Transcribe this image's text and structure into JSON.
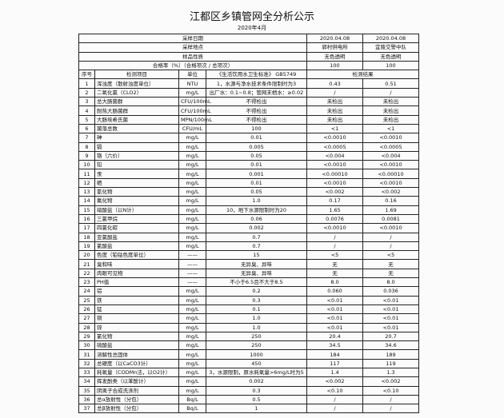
{
  "header": {
    "title": "江都区乡镇管网全分析公示",
    "subtitle": "2020年4月"
  },
  "info_rows": [
    [
      "采样日期",
      "2020.04.08",
      "2020.04.08"
    ],
    [
      "采样地点",
      "郭村供电所",
      "宜陵交警中队"
    ],
    [
      "样品性质",
      "无色透明",
      "无色透明"
    ],
    [
      "合格率（%）（合格项次 / 总项次）",
      "100",
      "100"
    ]
  ],
  "table": {
    "columns": [
      "序号",
      "检测项目",
      "单位",
      "《生活饮用水卫生标准》 GB5749",
      "检测结果"
    ],
    "rows": [
      [
        "1",
        "浑浊度（散射浊度单位）",
        "NTU",
        "1，水源与净水技术条件限制时为3",
        "0.43",
        "0.51"
      ],
      [
        "2",
        "二氧化氯（CLO2）",
        "mg/L",
        "出厂水：0.1~0.8；管网末梢水：≥0.02",
        "/",
        "/"
      ],
      [
        "3",
        "总大肠菌群",
        "CFU/100mL",
        "不得检出",
        "未检出",
        "未检出"
      ],
      [
        "4",
        "耐热大肠菌群",
        "CFU/100mL",
        "不得检出",
        "未检出",
        "未检出"
      ],
      [
        "5",
        "大肠埃希氏菌",
        "MPN/100mL",
        "不得检出",
        "未检出",
        "未检出"
      ],
      [
        "6",
        "菌落总数",
        "CFU/mL",
        "100",
        "<1",
        "<1"
      ],
      [
        "7",
        "砷",
        "mg/L",
        "0.01",
        "<0.0010",
        "<0.0010"
      ],
      [
        "8",
        "镉",
        "mg/L",
        "0.005",
        "<0.0005",
        "<0.0005"
      ],
      [
        "9",
        "铬（六价）",
        "mg/L",
        "0.05",
        "<0.004",
        "<0.004"
      ],
      [
        "10",
        "铅",
        "mg/L",
        "0.01",
        "<0.0010",
        "<0.0010"
      ],
      [
        "11",
        "汞",
        "mg/L",
        "0.001",
        "<0.00010",
        "<0.00010"
      ],
      [
        "12",
        "硒",
        "mg/L",
        "0.01",
        "<0.0010",
        "<0.0010"
      ],
      [
        "13",
        "氰化物",
        "mg/L",
        "0.05",
        "<0.002",
        "<0.002"
      ],
      [
        "14",
        "氟化物",
        "mg/L",
        "1.0",
        "0.17",
        "0.16"
      ],
      [
        "15",
        "硝酸盐（以N计）",
        "mg/L",
        "10，地下水源限制时为20",
        "1.65",
        "1.69"
      ],
      [
        "16",
        "三氯甲烷",
        "mg/L",
        "0.06",
        "0.0076",
        "0.0081"
      ],
      [
        "17",
        "四氯化碳",
        "mg/L",
        "0.002",
        "<0.0010",
        "<0.0010"
      ],
      [
        "18",
        "亚氯酸盐",
        "mg/L",
        "0.7",
        "/",
        "/"
      ],
      [
        "19",
        "氯酸盐",
        "mg/L",
        "0.7",
        "/",
        "/"
      ],
      [
        "20",
        "色度（铂钴色度单位）",
        "——",
        "15",
        "<5",
        "<5"
      ],
      [
        "21",
        "臭和味",
        "——",
        "无异臭、异味",
        "无",
        "无"
      ],
      [
        "22",
        "肉眼可见物",
        "——",
        "无异臭、异味",
        "无",
        "无"
      ],
      [
        "23",
        "PH值",
        "——",
        "不小于6.5且不大于8.5",
        "8.0",
        "8.0"
      ],
      [
        "24",
        "铝",
        "mg/L",
        "0.2",
        "0.060",
        "0.036"
      ],
      [
        "25",
        "铁",
        "mg/L",
        "0.3",
        "<0.01",
        "<0.01"
      ],
      [
        "26",
        "锰",
        "mg/L",
        "0.1",
        "<0.01",
        "<0.01"
      ],
      [
        "27",
        "铜",
        "mg/L",
        "1.0",
        "<0.01",
        "<0.01"
      ],
      [
        "28",
        "锌",
        "mg/L",
        "1.0",
        "<0.01",
        "<0.01"
      ],
      [
        "29",
        "氯化物",
        "mg/L",
        "250",
        "20.4",
        "20.7"
      ],
      [
        "30",
        "硫酸盐",
        "mg/L",
        "250",
        "34.5",
        "34.6"
      ],
      [
        "31",
        "溶解性总固体",
        "mg/L",
        "1000",
        "184",
        "189"
      ],
      [
        "32",
        "总硬度（以CaCO3计）",
        "mg/L",
        "450",
        "117",
        "119"
      ],
      [
        "33",
        "耗氧量（CODMn法，以O2计）",
        "mg/L",
        "3，水源限制，原水耗氧量>6mg/L时为5",
        "1.4",
        "1.3"
      ],
      [
        "34",
        "挥发酚类（以苯酚计）",
        "mg/L",
        "0.002",
        "<0.002",
        "<0.002"
      ],
      [
        "35",
        "阴离子合成洗涤剂",
        "mg/L",
        "0.3",
        "<0.10",
        "<0.10"
      ],
      [
        "36",
        "总α放射性（分包）",
        "Bq/L",
        "0.5",
        "/",
        "/"
      ],
      [
        "37",
        "总β放射性（分包）",
        "Bq/L",
        "1",
        "/",
        "/"
      ]
    ]
  }
}
